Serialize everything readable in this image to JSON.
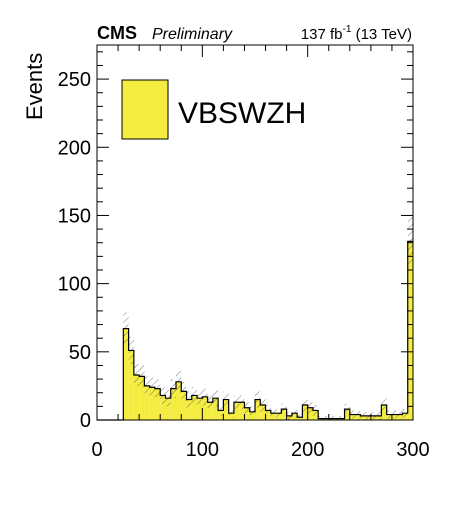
{
  "header": {
    "experiment": "CMS",
    "status": "Preliminary",
    "lumi_value": "137 fb",
    "lumi_exp": "-1",
    "lumi_energy": " (13 TeV)"
  },
  "chart_data": {
    "type": "bar",
    "histogram": true,
    "ylabel": "Events",
    "xlabel": "",
    "xlim": [
      0,
      300
    ],
    "ylim": [
      0,
      275
    ],
    "xticks": [
      0,
      100,
      200,
      300
    ],
    "yticks": [
      0,
      50,
      100,
      150,
      200,
      250
    ],
    "bin_width": 5,
    "bin_edges_start": 0,
    "series": [
      {
        "name": "VBSWZH",
        "color": "#f5ec42",
        "values": [
          0,
          0,
          0,
          0,
          0,
          67,
          51,
          33,
          32,
          25,
          24,
          23,
          18,
          16,
          23,
          28,
          21,
          15,
          18,
          16,
          17,
          13,
          16,
          7,
          15,
          5,
          13,
          13,
          9,
          6,
          15,
          11,
          7,
          5,
          5,
          8,
          3,
          5,
          2,
          11,
          9,
          7,
          1,
          1,
          1,
          1,
          1,
          8,
          4,
          4,
          3,
          3,
          3,
          3,
          11,
          4,
          4,
          4,
          5,
          131
        ],
        "uncertainty": [
          0,
          0,
          0,
          0,
          0,
          12,
          10,
          8,
          8,
          7,
          7,
          7,
          6,
          6,
          7,
          8,
          7,
          6,
          6,
          6,
          6,
          5,
          6,
          4,
          6,
          3,
          5,
          5,
          4,
          4,
          6,
          5,
          4,
          3,
          3,
          4,
          3,
          3,
          2,
          5,
          4,
          4,
          2,
          2,
          2,
          2,
          2,
          4,
          3,
          3,
          3,
          3,
          3,
          3,
          5,
          3,
          3,
          3,
          3,
          18
        ]
      }
    ],
    "legend_position": "top-left",
    "grid": false
  }
}
